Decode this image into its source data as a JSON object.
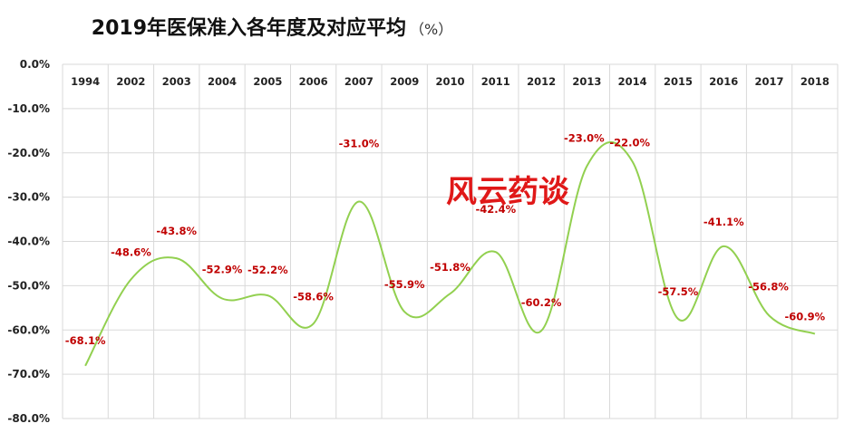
{
  "title": "2019年医保准入各年度及对应平均",
  "title_unit": "（%）",
  "watermark": "风云药谈",
  "colors": {
    "line": "#92d050",
    "label": "#c00000",
    "watermark": "#e01818",
    "grid": "#d9d9d9"
  },
  "chart_data": {
    "type": "line",
    "title": "2019年医保准入各年度及对应平均",
    "categories": [
      "1994",
      "2002",
      "2003",
      "2004",
      "2005",
      "2006",
      "2007",
      "2009",
      "2010",
      "2011",
      "2012",
      "2013",
      "2014",
      "2015",
      "2016",
      "2017",
      "2018"
    ],
    "series": [
      {
        "values": [
          -68.1,
          -48.6,
          -43.8,
          -52.9,
          -52.2,
          -58.6,
          -31.0,
          -55.9,
          -51.8,
          -42.4,
          -60.2,
          -23.0,
          -22.0,
          -57.5,
          -41.1,
          -56.8,
          -60.9
        ]
      }
    ],
    "data_labels": [
      "-68.1%",
      "-48.6%",
      "-43.8%",
      "-52.9%",
      "-52.2%",
      "-58.6%",
      "-31.0%",
      "-55.9%",
      "-51.8%",
      "-42.4%",
      "-60.2%",
      "-23.0%",
      "-22.0%",
      "-57.5%",
      "-41.1%",
      "-56.8%",
      "-60.9%"
    ],
    "y_ticks": [
      "0.0%",
      "-10.0%",
      "-20.0%",
      "-30.0%",
      "-40.0%",
      "-50.0%",
      "-60.0%",
      "-70.0%",
      "-80.0%"
    ],
    "ylim": [
      -80,
      0
    ],
    "x_axis_position": "top",
    "grid": true,
    "smooth": true,
    "legend": "none"
  }
}
